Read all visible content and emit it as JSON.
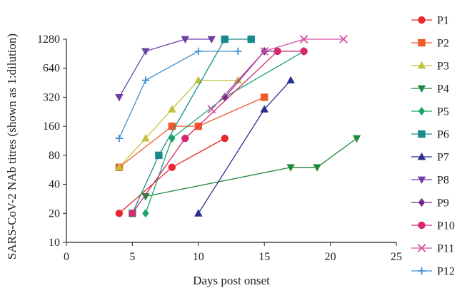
{
  "chart_data": {
    "type": "line",
    "xlabel": "Days post onset",
    "ylabel": "SARS-CoV-2 NAb titres (shown as 1:dilution)",
    "yscale": "log2",
    "xlim": [
      0,
      25
    ],
    "ylim": [
      10,
      1280
    ],
    "x_ticks": [
      0,
      5,
      10,
      15,
      20,
      25
    ],
    "y_ticks": [
      10,
      20,
      40,
      80,
      160,
      320,
      640,
      1280
    ],
    "grid": false,
    "legend_position": "right",
    "series": [
      {
        "name": "P1",
        "color": "#e8282d",
        "marker": "circle",
        "x": [
          4,
          8,
          12
        ],
        "y": [
          20,
          60,
          120
        ]
      },
      {
        "name": "P2",
        "color": "#f05a28",
        "marker": "square",
        "x": [
          4,
          8,
          10,
          15
        ],
        "y": [
          60,
          160,
          160,
          320
        ]
      },
      {
        "name": "P3",
        "color": "#c2c23a",
        "marker": "triangle-up",
        "x": [
          4,
          6,
          8,
          10,
          13
        ],
        "y": [
          60,
          120,
          240,
          480,
          480
        ]
      },
      {
        "name": "P4",
        "color": "#1e8a3c",
        "marker": "triangle-down",
        "x": [
          6,
          17,
          19,
          22
        ],
        "y": [
          30,
          60,
          60,
          120
        ]
      },
      {
        "name": "P5",
        "color": "#1aa46a",
        "marker": "diamond",
        "x": [
          6,
          8,
          12,
          18
        ],
        "y": [
          20,
          120,
          320,
          960
        ]
      },
      {
        "name": "P6",
        "color": "#178a8c",
        "marker": "square",
        "x": [
          5,
          7,
          12,
          14
        ],
        "y": [
          20,
          80,
          1280,
          1280
        ]
      },
      {
        "name": "P7",
        "color": "#2b2f8f",
        "marker": "triangle-up",
        "x": [
          10,
          15,
          17
        ],
        "y": [
          20,
          240,
          480
        ]
      },
      {
        "name": "P8",
        "color": "#6b3fa6",
        "marker": "triangle-down",
        "x": [
          4,
          6,
          9,
          11
        ],
        "y": [
          320,
          960,
          1280,
          1280
        ]
      },
      {
        "name": "P9",
        "color": "#6e2c8a",
        "marker": "diamond",
        "x": [
          12,
          15,
          18
        ],
        "y": [
          320,
          960,
          960
        ]
      },
      {
        "name": "P10",
        "color": "#d6286f",
        "marker": "circle",
        "x": [
          5,
          9,
          16,
          18
        ],
        "y": [
          20,
          120,
          960,
          960
        ]
      },
      {
        "name": "P11",
        "color": "#d34fa8",
        "marker": "x",
        "x": [
          11,
          15,
          18,
          21
        ],
        "y": [
          240,
          960,
          1280,
          1280
        ]
      },
      {
        "name": "P12",
        "color": "#3d8fd1",
        "marker": "plus",
        "x": [
          4,
          6,
          10,
          13
        ],
        "y": [
          120,
          480,
          960,
          960
        ]
      }
    ]
  }
}
